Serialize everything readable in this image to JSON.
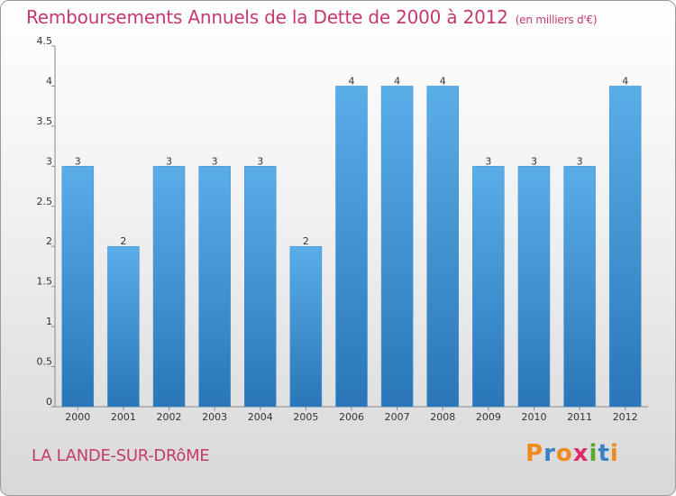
{
  "chart_data": {
    "type": "bar",
    "title": "Remboursements Annuels de la Dette de 2000 à 2012",
    "unit_note": "(en milliers d'€)",
    "categories": [
      "2000",
      "2001",
      "2002",
      "2003",
      "2004",
      "2005",
      "2006",
      "2007",
      "2008",
      "2009",
      "2010",
      "2011",
      "2012"
    ],
    "values": [
      3,
      2,
      3,
      3,
      3,
      2,
      4,
      4,
      4,
      3,
      3,
      3,
      4
    ],
    "data_labels": [
      "3",
      "2",
      "3",
      "3",
      "3",
      "2",
      "4",
      "4",
      "4",
      "3",
      "3",
      "3",
      "4"
    ],
    "ylim": [
      0,
      4.5
    ],
    "yticks": [
      "0",
      "0.5",
      "1",
      "1.5",
      "2",
      "2.5",
      "3",
      "3.5",
      "4",
      "4.5"
    ],
    "xlabel": "",
    "ylabel": "",
    "grid": false,
    "bar_color": "#4a9fe0"
  },
  "footer": {
    "city": "LA LANDE-SUR-DRôME",
    "logo_letters": [
      "P",
      "r",
      "o",
      "x",
      "i",
      "t",
      "i"
    ],
    "logo_colors": [
      "#f08a1c",
      "#3a7fc4",
      "#f08a1c",
      "#e02a6a",
      "#5aaa2a",
      "#3a7fc4",
      "#f08a1c"
    ]
  }
}
